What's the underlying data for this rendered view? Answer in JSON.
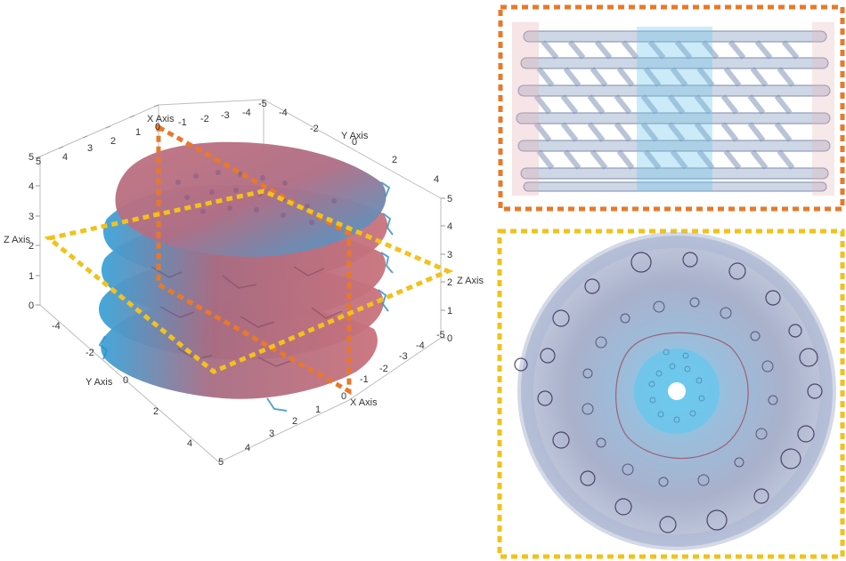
{
  "axes": {
    "x_label": "X Axis",
    "y_label": "Y Axis",
    "z_label": "Z Axis",
    "top_x_ticks": [
      "-5",
      "-4",
      "-3",
      "-2",
      "-1",
      "0",
      "1",
      "2",
      "3",
      "4",
      "5"
    ],
    "top_y_ticks": [
      "-4",
      "-2",
      "0",
      "2",
      "4"
    ],
    "z_ticks_left": [
      "0",
      "1",
      "2",
      "3",
      "4",
      "5"
    ],
    "z_ticks_right": [
      "0",
      "1",
      "2",
      "3",
      "4",
      "5"
    ],
    "bottom_x_ticks": [
      "-5",
      "-4",
      "-3",
      "-2",
      "-1",
      "0",
      "1",
      "2",
      "3",
      "4",
      "5"
    ],
    "bottom_y_ticks": [
      "-4",
      "-2",
      "0",
      "2",
      "4"
    ]
  },
  "colors": {
    "orange_frame": "#e8792a",
    "yellow_frame": "#f2c21b",
    "surface_blue": "#3fa6d8",
    "surface_red": "#c9727c",
    "slice_gray": "#8d9bb6",
    "pore_dark": "#3a2f57"
  },
  "icons": {
    "main_view": "stacked-porous-disk-3d-render",
    "top_inset": "vertical-cross-section-render",
    "bottom_inset": "horizontal-cross-section-render"
  }
}
